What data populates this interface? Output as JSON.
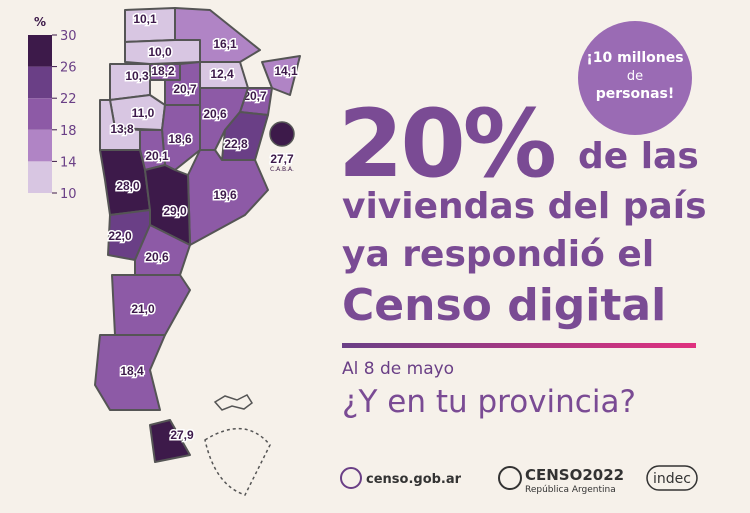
{
  "legend": {
    "title": "%",
    "ticks": [
      30,
      26,
      22,
      18,
      14,
      10
    ],
    "colors": [
      "#3d1a4a",
      "#6a3f86",
      "#8d5aa6",
      "#b084c5",
      "#d8c6e2"
    ]
  },
  "regions": [
    {
      "value": 10.1,
      "label": "10,1"
    },
    {
      "value": 10.0,
      "label": "10,0"
    },
    {
      "value": 16.1,
      "label": "16,1"
    },
    {
      "value": 18.2,
      "label": "18,2"
    },
    {
      "value": 10.3,
      "label": "10,3"
    },
    {
      "value": 12.4,
      "label": "12,4"
    },
    {
      "value": 14.1,
      "label": "14,1"
    },
    {
      "value": 20.7,
      "label": "20,7"
    },
    {
      "value": 20.7,
      "label": "20,7"
    },
    {
      "value": 11.0,
      "label": "11,0"
    },
    {
      "value": 20.6,
      "label": "20,6"
    },
    {
      "value": 22.8,
      "label": "22,8"
    },
    {
      "value": 13.8,
      "label": "13,8"
    },
    {
      "value": 18.6,
      "label": "18,6"
    },
    {
      "value": 20.1,
      "label": "20,1"
    },
    {
      "value": 28.0,
      "label": "28,0"
    },
    {
      "value": 19.6,
      "label": "19,6"
    },
    {
      "value": 29.0,
      "label": "29,0"
    },
    {
      "value": 22.0,
      "label": "22,0"
    },
    {
      "value": 20.6,
      "label": "20,6"
    },
    {
      "value": 21.0,
      "label": "21,0"
    },
    {
      "value": 18.4,
      "label": "18,4"
    },
    {
      "value": 27.9,
      "label": "27,9"
    },
    {
      "value": 27.7,
      "label": "27,7",
      "sublabel": "C.A.B.A."
    }
  ],
  "bubble": {
    "line1": "¡10 millones",
    "line2": "de",
    "line3": "personas!"
  },
  "headline": {
    "big": "20%",
    "line1": "de las",
    "line2": "viviendas del país",
    "line3": "ya respondió el",
    "line4": "Censo digital"
  },
  "date": "Al 8 de mayo",
  "question": "¿Y en tu provincia?",
  "footer": {
    "site": "censo.gob.ar",
    "brand": "CENSO2022",
    "brand_sub": "República Argentina",
    "org": "indec"
  }
}
